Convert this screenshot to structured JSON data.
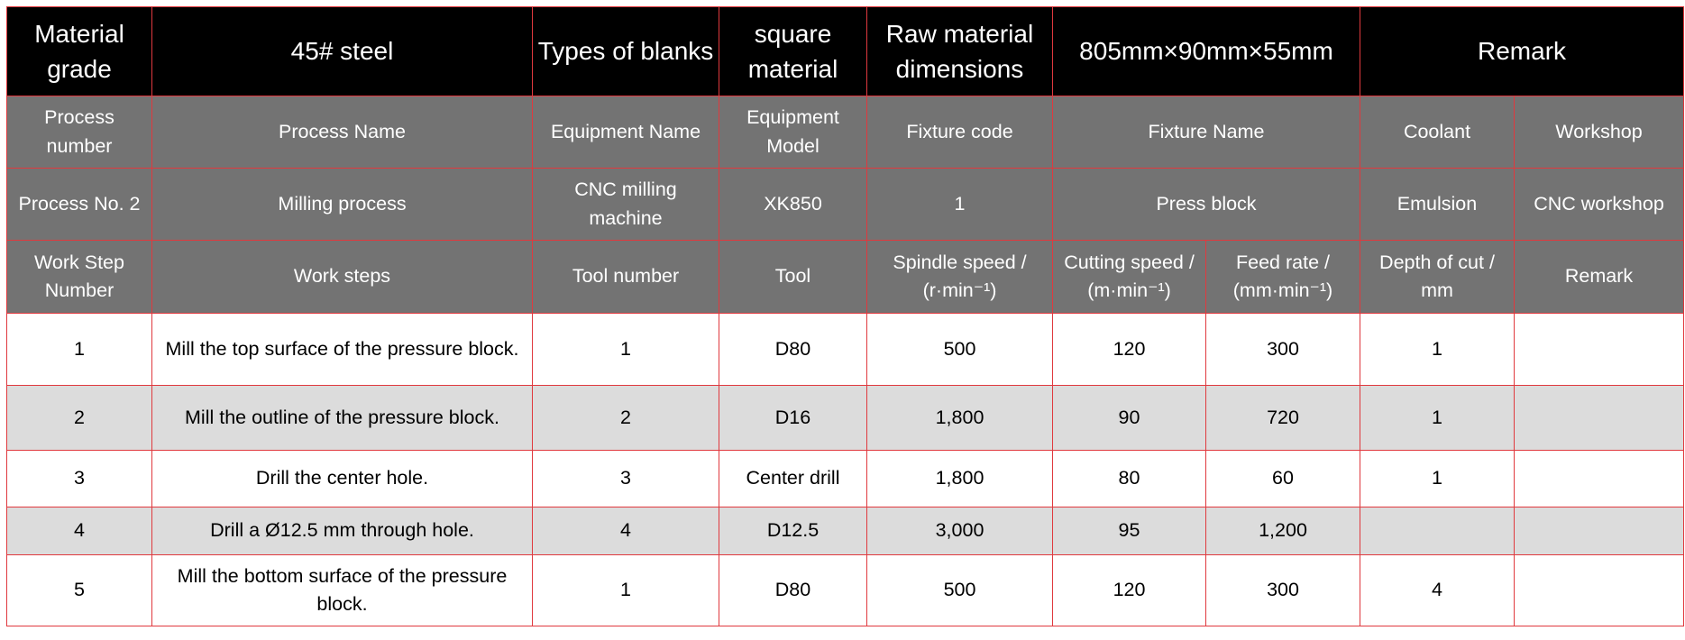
{
  "header": {
    "material_grade_label": "Material grade",
    "material_grade": "45# steel",
    "blank_type_label": "Types of blanks",
    "blank_type": "square material",
    "raw_dims_label": "Raw material dimensions",
    "raw_dims": "805mm×90mm×55mm",
    "remark_label": "Remark"
  },
  "process_header": {
    "process_number": "Process number",
    "process_name": "Process Name",
    "equipment_name": "Equipment Name",
    "equipment_model": "Equipment Model",
    "fixture_code": "Fixture code",
    "fixture_name": "Fixture Name",
    "coolant": "Coolant",
    "workshop": "Workshop"
  },
  "process": {
    "process_number": "Process No. 2",
    "process_name": "Milling process",
    "equipment_name": "CNC milling machine",
    "equipment_model": "XK850",
    "fixture_code": "1",
    "fixture_name": "Press block",
    "coolant": "Emulsion",
    "workshop": "CNC workshop"
  },
  "step_header": {
    "step_number": "Work Step Number",
    "work_steps": "Work steps",
    "tool_number": "Tool number",
    "tool": "Tool",
    "spindle_speed": "Spindle speed / (r·min⁻¹)",
    "cutting_speed": "Cutting speed / (m·min⁻¹)",
    "feed_rate": "Feed rate / (mm·min⁻¹)",
    "depth_of_cut": "Depth of cut / mm",
    "remark": "Remark"
  },
  "steps": [
    {
      "no": "1",
      "step": "Mill the top surface of the pressure block.",
      "tool_no": "1",
      "tool": "D80",
      "spindle": "500",
      "cutting": "120",
      "feed": "300",
      "depth": "1",
      "remark": ""
    },
    {
      "no": "2",
      "step": "Mill the outline of the pressure block.",
      "tool_no": "2",
      "tool": "D16",
      "spindle": "1,800",
      "cutting": "90",
      "feed": "720",
      "depth": "1",
      "remark": ""
    },
    {
      "no": "3",
      "step": "Drill the center hole.",
      "tool_no": "3",
      "tool": "Center drill",
      "spindle": "1,800",
      "cutting": "80",
      "feed": "60",
      "depth": "1",
      "remark": ""
    },
    {
      "no": "4",
      "step": "Drill a Ø12.5 mm through hole.",
      "tool_no": "4",
      "tool": "D12.5",
      "spindle": "3,000",
      "cutting": "95",
      "feed": "1,200",
      "depth": "",
      "remark": ""
    },
    {
      "no": "5",
      "step": "Mill the bottom surface of the pressure block.",
      "tool_no": "1",
      "tool": "D80",
      "spindle": "500",
      "cutting": "120",
      "feed": "300",
      "depth": "4",
      "remark": ""
    }
  ],
  "colors": {
    "header_bg": "#000000",
    "subheader_bg": "#737373",
    "alt_row_bg": "#dcdcdc",
    "border": "#e0393e"
  }
}
